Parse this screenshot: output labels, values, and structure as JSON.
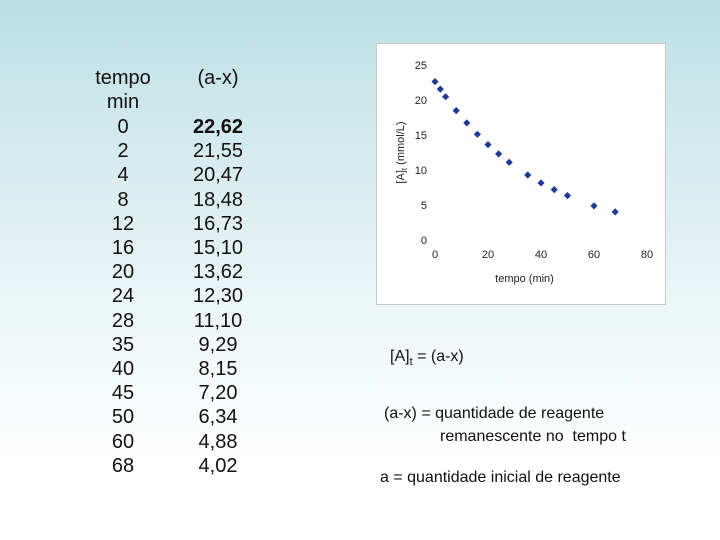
{
  "table": {
    "col1_header": [
      "tempo",
      "min"
    ],
    "col2_header": "(a-x)",
    "time": [
      "0",
      "2",
      "4",
      "8",
      "12",
      "16",
      "20",
      "24",
      "28",
      "35",
      "40",
      "45",
      "50",
      "60",
      "68"
    ],
    "value": [
      "22,62",
      "21,55",
      "20,47",
      "18,48",
      "16,73",
      "15,10",
      "13,62",
      "12,30",
      "11,10",
      "9,29",
      "8,15",
      "7,20",
      "6,34",
      "4,88",
      "4,02"
    ]
  },
  "chart_data": {
    "type": "scatter",
    "x": [
      0,
      2,
      4,
      8,
      12,
      16,
      20,
      24,
      28,
      35,
      40,
      45,
      50,
      60,
      68
    ],
    "y": [
      22.62,
      21.55,
      20.47,
      18.48,
      16.73,
      15.1,
      13.62,
      12.3,
      11.1,
      9.29,
      8.15,
      7.2,
      6.34,
      4.88,
      4.02
    ],
    "xlabel": "tempo (min)",
    "ylabel_main": "[A]",
    "ylabel_sub": "t",
    "ylabel_unit": "(mmol/L)",
    "xlim": [
      0,
      80
    ],
    "ylim": [
      0,
      25
    ],
    "xticks": [
      "0",
      "20",
      "40",
      "60",
      "80"
    ],
    "yticks": [
      "0",
      "5",
      "10",
      "15",
      "20",
      "25"
    ],
    "grid": false,
    "marker_color": "#1f3a93"
  },
  "notes": {
    "equation_main": "[A]",
    "equation_sub": "t",
    "equation_rest": " = (a-x)",
    "def1_line1": "(a-x) = quantidade de reagente",
    "def1_line2": "remanescente no  tempo t",
    "def2": "a = quantidade inicial de reagente"
  }
}
